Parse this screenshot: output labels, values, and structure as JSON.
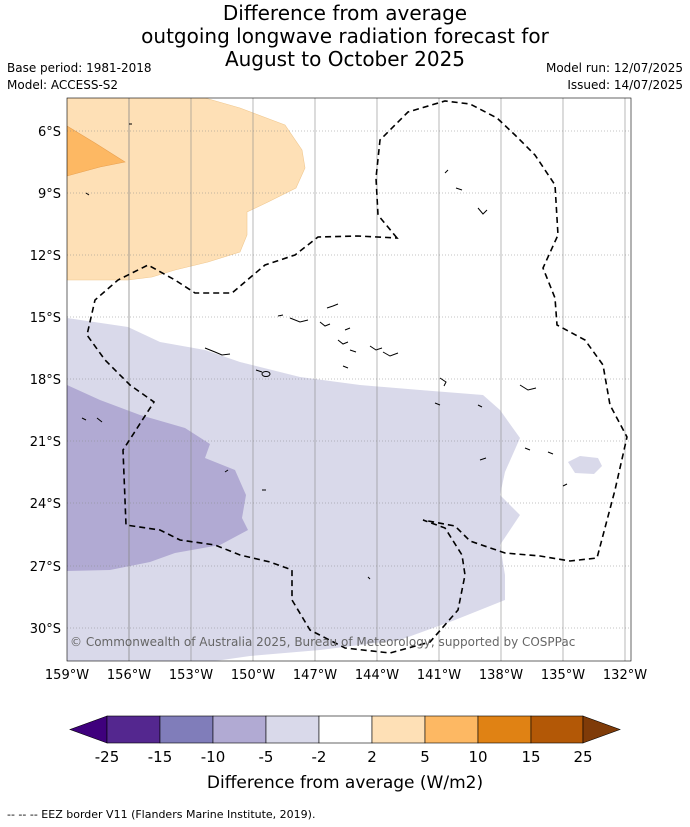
{
  "title": {
    "line1": "Difference from average",
    "line2": "outgoing longwave radiation forecast for",
    "line3": "August to October 2025"
  },
  "meta": {
    "base_period": "Base period: 1981-2018",
    "model": "Model: ACCESS-S2",
    "model_run": "Model run: 12/07/2025",
    "issued": "Issued: 14/07/2025"
  },
  "map": {
    "lat_labels": [
      "6°S",
      "9°S",
      "12°S",
      "15°S",
      "18°S",
      "21°S",
      "24°S",
      "27°S",
      "30°S"
    ],
    "lon_labels": [
      "159°W",
      "156°W",
      "153°W",
      "150°W",
      "147°W",
      "144°W",
      "141°W",
      "138°W",
      "135°W",
      "132°W"
    ],
    "copyright": "© Commonwealth of Australia 2025, Bureau of Meteorology, supported by COSPPac"
  },
  "colorbar": {
    "ticks": [
      "-25",
      "-15",
      "-10",
      "-5",
      "-2",
      "2",
      "5",
      "10",
      "15",
      "25"
    ],
    "colors": [
      "#3f007d",
      "#54278f",
      "#807dba",
      "#b1aad3",
      "#d9d9ea",
      "#ffffff",
      "#fee0b6",
      "#fdb863",
      "#e08214",
      "#b35806",
      "#7f3b08"
    ],
    "label": "Difference from average (W/m2)"
  },
  "footnote": "-- -- -- EEZ border V11 (Flanders Marine Institute, 2019)."
}
